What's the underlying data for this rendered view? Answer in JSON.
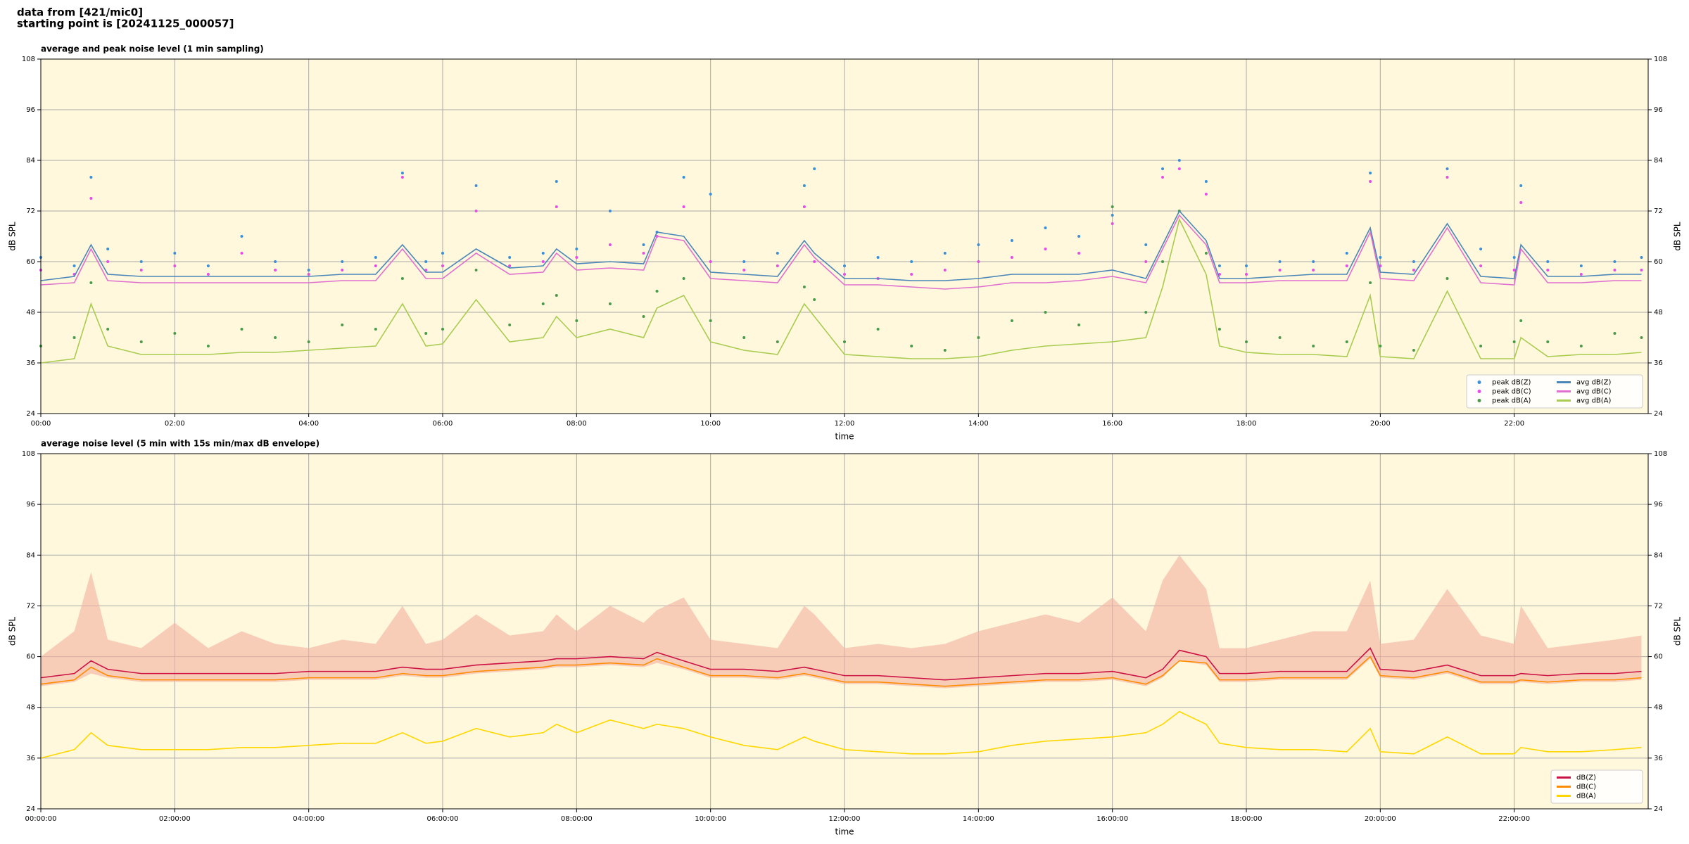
{
  "header": {
    "line1": "data from [421/mic0]",
    "line2": "starting point is [20241125_000057]"
  },
  "chart_data": [
    {
      "type": "line",
      "title": "average and peak noise level (1 min sampling)",
      "xlabel": "time",
      "ylabel": "dB SPL",
      "xlim": [
        0,
        24
      ],
      "ylim": [
        24,
        108
      ],
      "yticks": [
        24,
        36,
        48,
        60,
        72,
        84,
        96,
        108
      ],
      "xticks": [
        {
          "value": 0,
          "label": "00:00"
        },
        {
          "value": 2,
          "label": "02:00"
        },
        {
          "value": 4,
          "label": "04:00"
        },
        {
          "value": 6,
          "label": "06:00"
        },
        {
          "value": 8,
          "label": "08:00"
        },
        {
          "value": 10,
          "label": "10:00"
        },
        {
          "value": 12,
          "label": "12:00"
        },
        {
          "value": 14,
          "label": "14:00"
        },
        {
          "value": 16,
          "label": "16:00"
        },
        {
          "value": 18,
          "label": "18:00"
        },
        {
          "value": 20,
          "label": "20:00"
        },
        {
          "value": 22,
          "label": "22:00"
        }
      ],
      "grid": true,
      "legend": "lower right",
      "legend_ncol": 2,
      "background": "#fff8dc",
      "x": [
        0,
        0.5,
        0.75,
        1,
        1.5,
        2,
        2.5,
        3,
        3.5,
        4,
        4.5,
        5,
        5.4,
        5.75,
        6,
        6.5,
        7,
        7.5,
        7.7,
        8,
        8.5,
        9,
        9.2,
        9.6,
        10,
        10.5,
        11,
        11.4,
        11.55,
        12,
        12.5,
        13,
        13.5,
        14,
        14.5,
        15,
        15.5,
        16,
        16.5,
        16.75,
        17,
        17.4,
        17.6,
        18,
        18.5,
        19,
        19.5,
        19.85,
        20,
        20.5,
        21,
        21.5,
        22,
        22.1,
        22.5,
        23,
        23.5,
        23.9
      ],
      "series": [
        {
          "name": "peak dB(Z)",
          "style": "markers",
          "color": "#3b8fd9",
          "values": [
            61,
            59,
            80,
            63,
            60,
            62,
            59,
            66,
            60,
            58,
            60,
            61,
            81,
            60,
            62,
            78,
            61,
            62,
            79,
            63,
            72,
            64,
            67,
            80,
            76,
            60,
            62,
            78,
            82,
            59,
            61,
            60,
            62,
            64,
            65,
            68,
            66,
            71,
            64,
            82,
            84,
            79,
            59,
            59,
            60,
            60,
            62,
            81,
            61,
            60,
            82,
            63,
            61,
            78,
            60,
            59,
            60,
            61
          ]
        },
        {
          "name": "peak dB(C)",
          "style": "markers",
          "color": "#e64ce6",
          "values": [
            58,
            57,
            75,
            60,
            58,
            59,
            57,
            62,
            58,
            57,
            58,
            59,
            80,
            58,
            59,
            72,
            59,
            60,
            73,
            61,
            64,
            62,
            66,
            73,
            60,
            58,
            59,
            73,
            60,
            57,
            56,
            57,
            58,
            60,
            61,
            63,
            62,
            69,
            60,
            80,
            82,
            76,
            57,
            57,
            58,
            58,
            59,
            79,
            59,
            58,
            80,
            59,
            58,
            74,
            58,
            57,
            58,
            58
          ]
        },
        {
          "name": "peak dB(A)",
          "style": "markers",
          "color": "#4a9a4a",
          "values": [
            40,
            42,
            55,
            44,
            41,
            43,
            40,
            44,
            42,
            41,
            45,
            44,
            56,
            43,
            44,
            58,
            45,
            50,
            52,
            46,
            50,
            47,
            53,
            56,
            46,
            42,
            41,
            54,
            51,
            41,
            44,
            40,
            39,
            42,
            46,
            48,
            45,
            73,
            48,
            60,
            72,
            62,
            44,
            41,
            42,
            40,
            41,
            55,
            40,
            39,
            56,
            40,
            41,
            46,
            41,
            40,
            43,
            42
          ]
        },
        {
          "name": "avg dB(Z)",
          "style": "line",
          "color": "#4a86b8",
          "values": [
            55.5,
            56.5,
            64,
            57,
            56.5,
            56.5,
            56.5,
            56.5,
            56.5,
            56.5,
            57,
            57,
            64,
            57.5,
            57.5,
            63,
            58.5,
            59,
            63,
            59.5,
            60,
            59.5,
            67,
            66,
            57.5,
            57,
            56.5,
            65,
            62,
            56,
            56,
            55.5,
            55.5,
            56,
            57,
            57,
            57,
            58,
            56,
            64,
            72,
            65,
            56,
            56,
            56.5,
            57,
            57,
            68,
            57.5,
            57,
            69,
            56.5,
            56,
            64,
            56.5,
            56.5,
            57,
            57
          ]
        },
        {
          "name": "avg dB(C)",
          "style": "line",
          "color": "#e070d0",
          "values": [
            54.5,
            55,
            63,
            55.5,
            55,
            55,
            55,
            55,
            55,
            55,
            55.5,
            55.5,
            63,
            56,
            56,
            62,
            57,
            57.5,
            62,
            58,
            58.5,
            58,
            66,
            65,
            56,
            55.5,
            55,
            64,
            61,
            54.5,
            54.5,
            54,
            53.5,
            54,
            55,
            55,
            55.5,
            56.5,
            55,
            63,
            71,
            64,
            55,
            55,
            55.5,
            55.5,
            55.5,
            67,
            56,
            55.5,
            68,
            55,
            54.5,
            63,
            55,
            55,
            55.5,
            55.5
          ]
        },
        {
          "name": "avg dB(A)",
          "style": "line",
          "color": "#a8cc50",
          "values": [
            36,
            37,
            50,
            40,
            38,
            38,
            38,
            38.5,
            38.5,
            39,
            39.5,
            40,
            50,
            40,
            40.5,
            51,
            41,
            42,
            47,
            42,
            44,
            42,
            49,
            52,
            41,
            39,
            38,
            50,
            47,
            38,
            37.5,
            37,
            37,
            37.5,
            39,
            40,
            40.5,
            41,
            42,
            54,
            70,
            57,
            40,
            38.5,
            38,
            38,
            37.5,
            52,
            37.5,
            37,
            53,
            37,
            37,
            42,
            37.5,
            38,
            38,
            38.5
          ]
        }
      ]
    },
    {
      "type": "line",
      "title": "average noise level (5 min with 15s min/max dB envelope)",
      "xlabel": "time",
      "ylabel": "dB SPL",
      "xlim": [
        0,
        24
      ],
      "ylim": [
        24,
        108
      ],
      "yticks": [
        24,
        36,
        48,
        60,
        72,
        84,
        96,
        108
      ],
      "xticks": [
        {
          "value": 0,
          "label": "00:00:00"
        },
        {
          "value": 2,
          "label": "02:00:00"
        },
        {
          "value": 4,
          "label": "04:00:00"
        },
        {
          "value": 6,
          "label": "06:00:00"
        },
        {
          "value": 8,
          "label": "08:00:00"
        },
        {
          "value": 10,
          "label": "10:00:00"
        },
        {
          "value": 12,
          "label": "12:00:00"
        },
        {
          "value": 14,
          "label": "14:00:00"
        },
        {
          "value": 16,
          "label": "16:00:00"
        },
        {
          "value": 18,
          "label": "18:00:00"
        },
        {
          "value": 20,
          "label": "20:00:00"
        },
        {
          "value": 22,
          "label": "22:00:00"
        }
      ],
      "grid": true,
      "legend": "lower right",
      "legend_ncol": 1,
      "background": "#fff8dc",
      "x": [
        0,
        0.5,
        0.75,
        1,
        1.5,
        2,
        2.5,
        3,
        3.5,
        4,
        4.5,
        5,
        5.4,
        5.75,
        6,
        6.5,
        7,
        7.5,
        7.7,
        8,
        8.5,
        9,
        9.2,
        9.6,
        10,
        10.5,
        11,
        11.4,
        11.55,
        12,
        12.5,
        13,
        13.5,
        14,
        14.5,
        15,
        15.5,
        16,
        16.5,
        16.75,
        17,
        17.4,
        17.6,
        18,
        18.5,
        19,
        19.5,
        19.85,
        20,
        20.5,
        21,
        21.5,
        22,
        22.1,
        22.5,
        23,
        23.5,
        23.9
      ],
      "series": [
        {
          "name": "dB(Z)",
          "style": "line",
          "color": "#cc1144",
          "envelope_color": "#f4b0a0",
          "values": [
            55,
            56,
            59,
            57,
            56,
            56,
            56,
            56,
            56,
            56.5,
            56.5,
            56.5,
            57.5,
            57,
            57,
            58,
            58.5,
            59,
            59.5,
            59.5,
            60,
            59.5,
            61,
            59,
            57,
            57,
            56.5,
            57.5,
            57,
            55.5,
            55.5,
            55,
            54.5,
            55,
            55.5,
            56,
            56,
            56.5,
            55,
            57,
            61.5,
            60,
            56,
            56,
            56.5,
            56.5,
            56.5,
            62,
            57,
            56.5,
            58,
            55.5,
            55.5,
            56,
            55.5,
            56,
            56,
            56.5
          ],
          "envelope_max": [
            60,
            66,
            80,
            64,
            62,
            68,
            62,
            66,
            63,
            62,
            64,
            63,
            72,
            63,
            64,
            70,
            65,
            66,
            70,
            66,
            72,
            68,
            71,
            74,
            64,
            63,
            62,
            72,
            70,
            62,
            63,
            62,
            63,
            66,
            68,
            70,
            68,
            74,
            66,
            78,
            84,
            76,
            62,
            62,
            64,
            66,
            66,
            78,
            63,
            64,
            76,
            65,
            63,
            72,
            62,
            63,
            64,
            65
          ],
          "envelope_min": [
            53,
            54,
            56,
            55,
            54,
            54,
            54,
            54,
            54,
            54.5,
            54.5,
            54.5,
            55.5,
            55,
            55,
            56,
            56.5,
            57,
            57.5,
            57.5,
            58,
            57.5,
            58.5,
            57,
            55,
            55,
            54.5,
            55.5,
            55,
            53.5,
            53.5,
            53,
            52.5,
            53,
            53.5,
            54,
            54,
            54.5,
            53,
            55,
            59,
            58,
            54,
            54,
            54.5,
            54.5,
            54.5,
            59.5,
            55,
            54.5,
            56,
            53.5,
            53.5,
            54,
            53.5,
            54,
            54,
            54.5
          ]
        },
        {
          "name": "dB(C)",
          "style": "line",
          "color": "#ff8c00",
          "values": [
            53.5,
            54.5,
            57.5,
            55.5,
            54.5,
            54.5,
            54.5,
            54.5,
            54.5,
            55,
            55,
            55,
            56,
            55.5,
            55.5,
            56.5,
            57,
            57.5,
            58,
            58,
            58.5,
            58,
            59.5,
            57.5,
            55.5,
            55.5,
            55,
            56,
            55.5,
            54,
            54,
            53.5,
            53,
            53.5,
            54,
            54.5,
            54.5,
            55,
            53.5,
            55.5,
            59,
            58.5,
            54.5,
            54.5,
            55,
            55,
            55,
            60,
            55.5,
            55,
            56.5,
            54,
            54,
            54.5,
            54,
            54.5,
            54.5,
            55
          ]
        },
        {
          "name": "dB(A)",
          "style": "line",
          "color": "#ffd700",
          "values": [
            36,
            38,
            42,
            39,
            38,
            38,
            38,
            38.5,
            38.5,
            39,
            39.5,
            39.5,
            42,
            39.5,
            40,
            43,
            41,
            42,
            44,
            42,
            45,
            43,
            44,
            43,
            41,
            39,
            38,
            41,
            40,
            38,
            37.5,
            37,
            37,
            37.5,
            39,
            40,
            40.5,
            41,
            42,
            44,
            47,
            44,
            39.5,
            38.5,
            38,
            38,
            37.5,
            43,
            37.5,
            37,
            41,
            37,
            37,
            38.5,
            37.5,
            37.5,
            38,
            38.5
          ]
        }
      ]
    }
  ]
}
